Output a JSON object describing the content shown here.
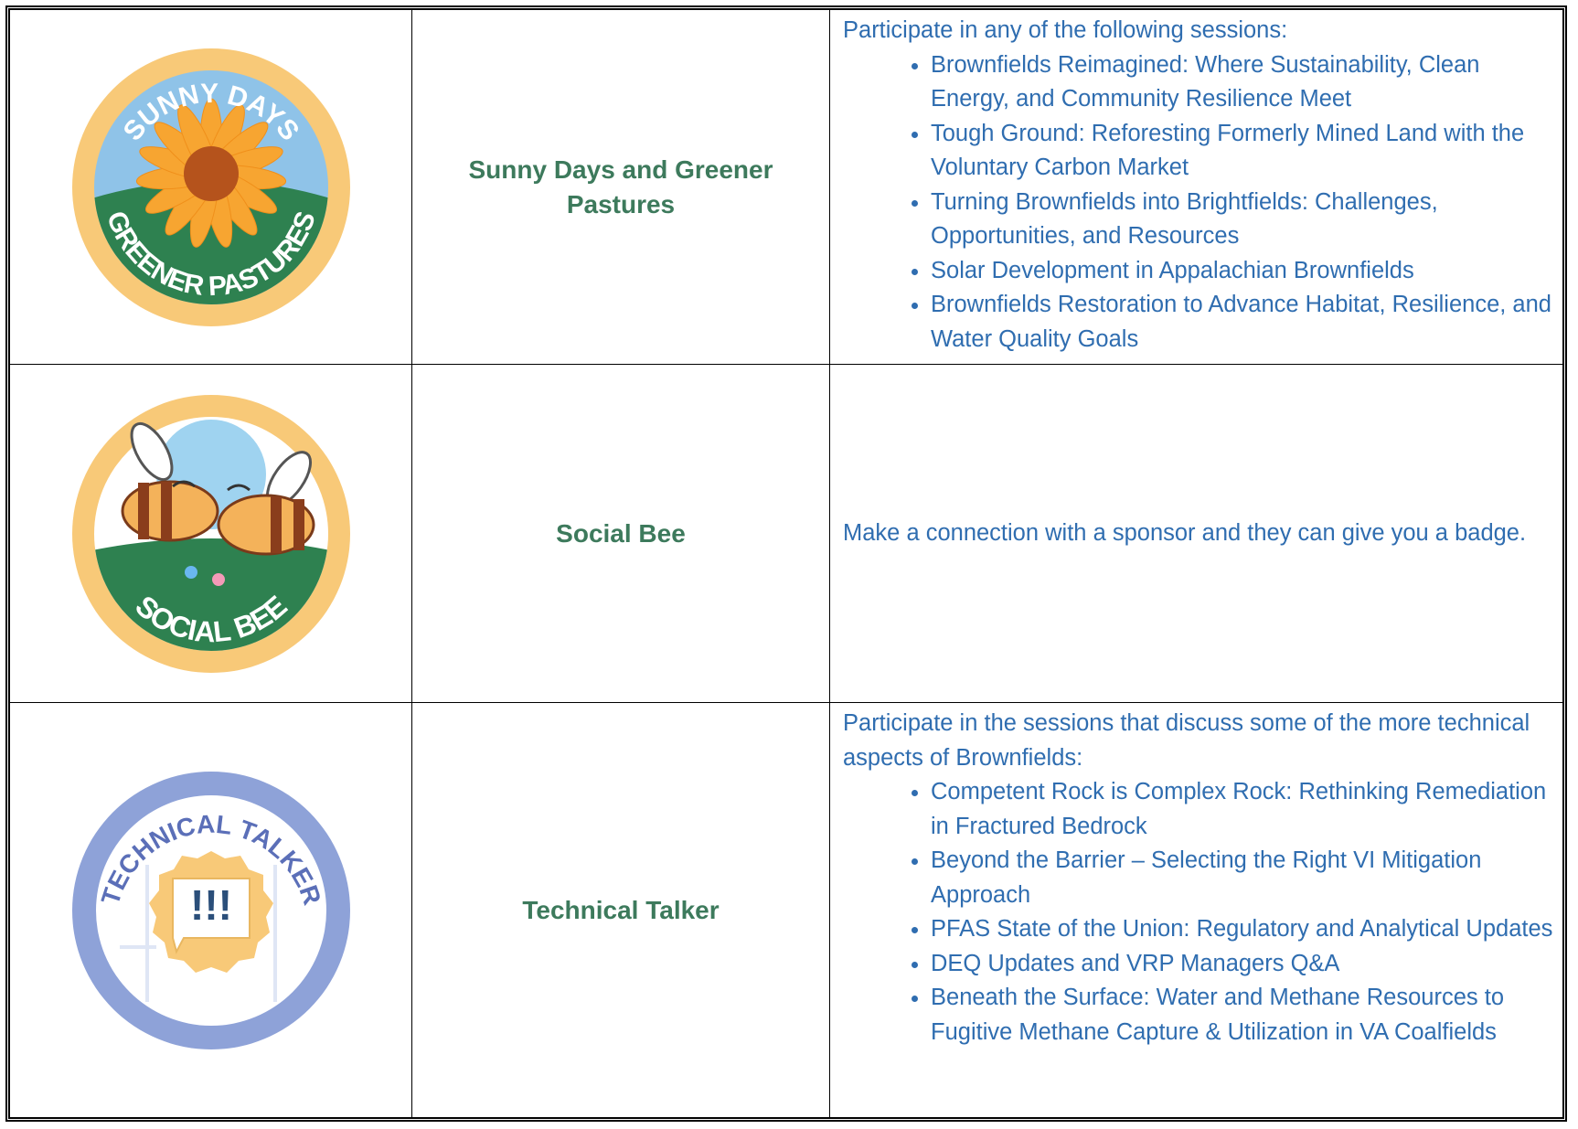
{
  "table": {
    "rows": [
      {
        "badge_text": [
          "SUNNY DAYS",
          "GREENER PASTURES"
        ],
        "name": "Sunny Days and Greener Pastures",
        "intro": "Participate in any of the following sessions:",
        "items": [
          "Brownfields Reimagined: Where Sustainability, Clean Energy, and Community Resilience Meet",
          "Tough Ground: Reforesting Formerly Mined Land with the Voluntary Carbon Market",
          "Turning Brownfields into Brightfields: Challenges, Opportunities, and Resources",
          "Solar Development in Appalachian Brownfields",
          "Brownfields Restoration to Advance Habitat, Resilience, and Water Quality Goals"
        ]
      },
      {
        "badge_text": [
          "SOCIAL BEE"
        ],
        "name": "Social Bee",
        "intro": "Make a connection with a sponsor and they can give you a badge."
      },
      {
        "badge_text": [
          "TECHNICAL TALKER",
          "!!!"
        ],
        "name": "Technical Talker",
        "intro": "Participate in the sessions that discuss some of the more technical aspects of Brownfields:",
        "items": [
          "Competent Rock is Complex Rock: Rethinking Remediation in Fractured Bedrock",
          "Beyond the Barrier – Selecting the Right VI Mitigation Approach",
          "PFAS State of the Union: Regulatory and Analytical Updates",
          "DEQ Updates and VRP Managers Q&A",
          "Beneath the Surface: Water and Methane Resources to Fugitive Methane Capture & Utilization in VA Coalfields"
        ]
      }
    ]
  }
}
